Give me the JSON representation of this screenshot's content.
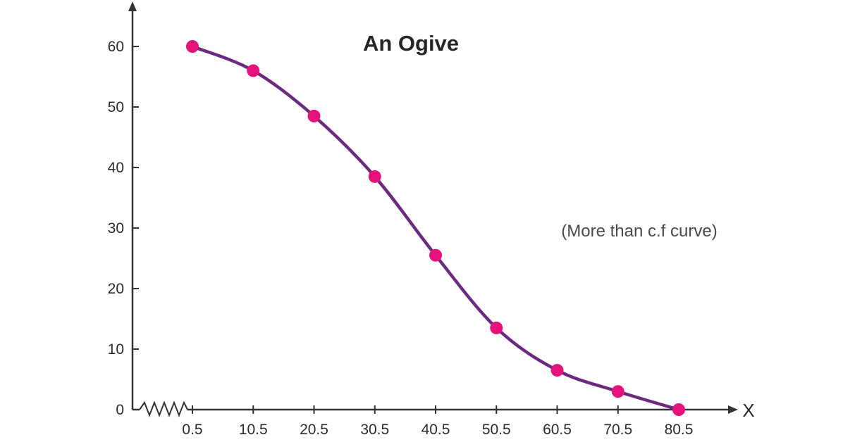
{
  "chart_data": {
    "type": "line",
    "title": "An Ogive",
    "annotation": "(More than c.f curve)",
    "xlabel": "X",
    "ylabel": "",
    "x_ticks": [
      "0.5",
      "10.5",
      "20.5",
      "30.5",
      "40.5",
      "50.5",
      "60.5",
      "70.5",
      "80.5"
    ],
    "y_ticks": [
      "0",
      "10",
      "20",
      "30",
      "40",
      "50",
      "60"
    ],
    "origin_label": "0",
    "xlim": [
      0.5,
      80.5
    ],
    "ylim": [
      0,
      60
    ],
    "axis_break": "zigzag between origin and 0.5",
    "grid": false,
    "series": [
      {
        "x": [
          0.5,
          10.5,
          20.5,
          30.5,
          40.5,
          50.5,
          60.5,
          70.5,
          80.5
        ],
        "y": [
          60,
          56,
          48.5,
          38.5,
          25.5,
          13.5,
          6.5,
          3,
          0
        ]
      }
    ],
    "colors": {
      "line": "#6b2a7e",
      "marker": "#e5127c",
      "axis": "#333333"
    }
  }
}
